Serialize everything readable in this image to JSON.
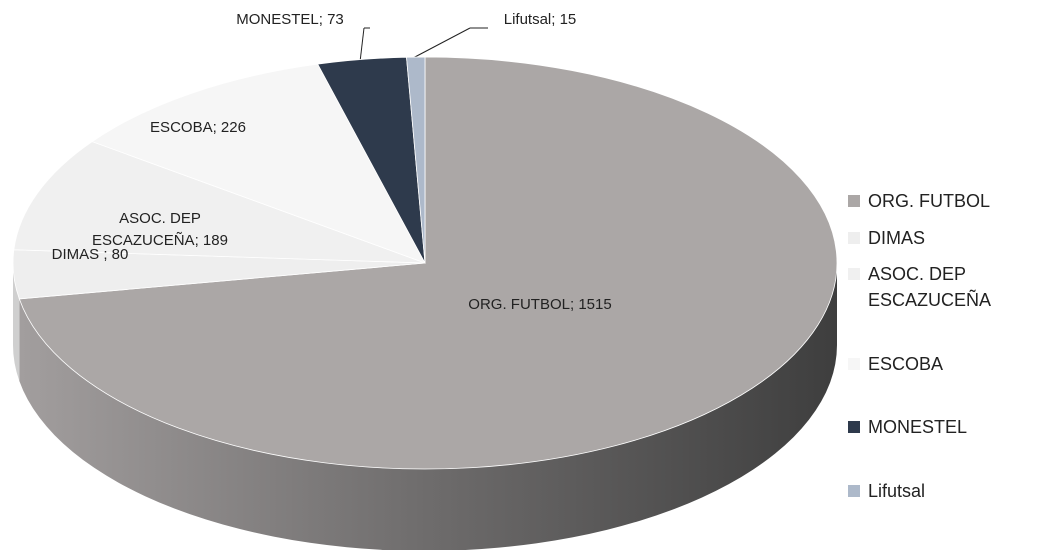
{
  "chart_data": {
    "type": "pie",
    "categories": [
      "ORG. FUTBOL",
      "DIMAS",
      "ASOC. DEP ESCAZUCEÑA",
      "ESCOBA",
      "MONESTEL",
      "Lifutsal"
    ],
    "values": [
      1515,
      80,
      189,
      226,
      73,
      15
    ],
    "value_labels": [
      "ORG. FUTBOL; 1515",
      "DIMAS ; 80",
      "ASOC. DEP ESCAZUCEÑA; 189",
      "ESCOBA; 226",
      "MONESTEL; 73",
      "Lifutsal; 15"
    ],
    "colors": [
      "#aba7a6",
      "#eeeeee",
      "#f0f0f0",
      "#f6f6f6",
      "#2e3a4c",
      "#adb9ca"
    ],
    "legend": "right"
  }
}
